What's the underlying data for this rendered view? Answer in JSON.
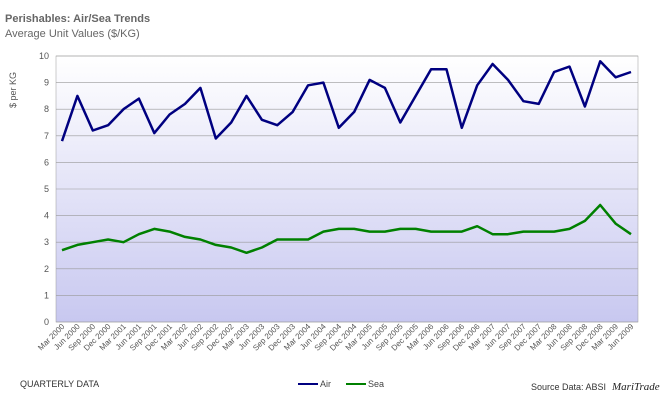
{
  "chart_data": {
    "type": "line",
    "title": "Perishables: Air/Sea Trends",
    "subtitle": "Average Unit Values ($/KG)",
    "ylabel": "$ per KG",
    "ylim": [
      0,
      10
    ],
    "yticks": [
      "0",
      "1",
      "2",
      "3",
      "4",
      "5",
      "6",
      "7",
      "8",
      "9",
      "10"
    ],
    "grid": true,
    "legend_position": "bottom-center",
    "categories": [
      "Mar 2000",
      "Jun 2000",
      "Sep 2000",
      "Dec 2000",
      "Mar 2001",
      "Jun 2001",
      "Sep 2001",
      "Dec 2001",
      "Mar 2002",
      "Jun 2002",
      "Sep 2002",
      "Dec 2002",
      "Mar 2003",
      "Jun 2003",
      "Sep 2003",
      "Dec 2003",
      "Mar 2004",
      "Jun 2004",
      "Sep 2004",
      "Dec 2004",
      "Mar 2005",
      "Jun 2005",
      "Sep 2005",
      "Dec 2005",
      "Mar 2006",
      "Jun 2006",
      "Sep 2006",
      "Dec 2006",
      "Mar 2007",
      "Jun 2007",
      "Sep 2007",
      "Dec 2007",
      "Mar 2008",
      "Jun 2008",
      "Sep 2008",
      "Dec 2008",
      "Mar 2009",
      "Jun 2009"
    ],
    "series": [
      {
        "name": "Air",
        "color": "#000080",
        "values": [
          6.8,
          8.5,
          7.2,
          7.4,
          8.0,
          8.4,
          7.1,
          7.8,
          8.2,
          8.8,
          6.9,
          7.5,
          8.5,
          7.6,
          7.4,
          7.9,
          8.9,
          9.0,
          7.3,
          7.9,
          9.1,
          8.8,
          7.5,
          8.5,
          9.5,
          9.5,
          7.3,
          8.9,
          9.7,
          9.1,
          8.3,
          8.2,
          9.4,
          9.6,
          8.1,
          9.8,
          9.2,
          9.4
        ]
      },
      {
        "name": "Sea",
        "color": "#008000",
        "values": [
          2.7,
          2.9,
          3.0,
          3.1,
          3.0,
          3.3,
          3.5,
          3.4,
          3.2,
          3.1,
          2.9,
          2.8,
          2.6,
          2.8,
          3.1,
          3.1,
          3.1,
          3.4,
          3.5,
          3.5,
          3.4,
          3.4,
          3.5,
          3.5,
          3.4,
          3.4,
          3.4,
          3.6,
          3.3,
          3.3,
          3.4,
          3.4,
          3.4,
          3.5,
          3.8,
          4.4,
          3.7,
          3.3
        ]
      }
    ]
  },
  "footer": {
    "left": "QUARTERLY DATA",
    "source_prefix": "Source Data: ABSI",
    "source_brand": "MariTrade"
  },
  "colors": {
    "plot_gradient_top": "#ffffff",
    "plot_gradient_bottom": "#c8c8f0",
    "gridline": "#999999"
  }
}
